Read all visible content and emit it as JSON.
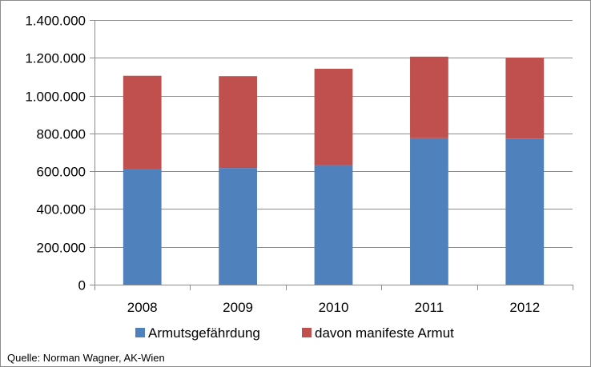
{
  "chart_data": {
    "type": "bar",
    "stacked": true,
    "categories": [
      "2008",
      "2009",
      "2010",
      "2011",
      "2012"
    ],
    "series": [
      {
        "name": "Armutsgefährdung",
        "color": "#4f81bd",
        "values": [
          611000,
          617000,
          632000,
          775000,
          773000
        ]
      },
      {
        "name": "davon manifeste Armut",
        "color": "#c0504d",
        "values": [
          494000,
          486000,
          510000,
          431000,
          428000
        ]
      }
    ],
    "ylim": [
      0,
      1400000
    ],
    "ytick_values": [
      0,
      200000,
      400000,
      600000,
      800000,
      1000000,
      1200000,
      1400000
    ],
    "ytick_labels": [
      "0",
      "200.000",
      "400.000",
      "600.000",
      "800.000",
      "1.000.000",
      "1.200.000",
      "1.400.000"
    ],
    "grid": true,
    "legend_position": "bottom",
    "title": "",
    "xlabel": "",
    "ylabel": ""
  },
  "source_note": "Quelle: Norman Wagner, AK-Wien"
}
